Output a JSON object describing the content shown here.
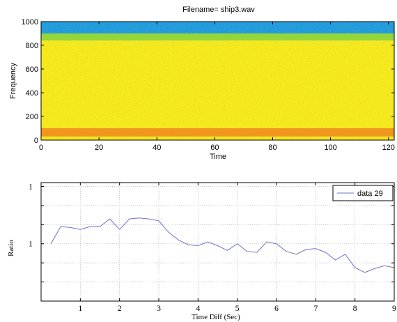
{
  "chart_data": [
    {
      "type": "heatmap",
      "title": "Filename= ship3.wav",
      "xlabel": "Time",
      "ylabel": "Frequency",
      "xlim": [
        0,
        122
      ],
      "ylim": [
        0,
        1000
      ],
      "x_ticks": [
        0,
        20,
        40,
        60,
        80,
        100,
        120
      ],
      "y_ticks": [
        0,
        200,
        400,
        600,
        800,
        1000
      ],
      "bands": [
        {
          "from": 0,
          "to": 30,
          "level": "yellow"
        },
        {
          "from": 30,
          "to": 100,
          "level": "orange-red"
        },
        {
          "from": 100,
          "to": 840,
          "level": "yellow"
        },
        {
          "from": 840,
          "to": 900,
          "level": "green"
        },
        {
          "from": 900,
          "to": 1000,
          "level": "cyan-blue"
        }
      ],
      "grid": false
    },
    {
      "type": "line",
      "xlabel": "Time Diff (Sec)",
      "ylabel": "Ratio",
      "xlim": [
        0,
        9
      ],
      "ylim": [
        0.7,
        1.32
      ],
      "x_ticks": [
        1,
        2,
        3,
        4,
        5,
        6,
        7,
        8,
        9
      ],
      "y_tick_labels": [
        {
          "value": 1.0,
          "label": "1"
        },
        {
          "value": 1.3,
          "label": "1"
        }
      ],
      "grid": true,
      "legend": "top-right",
      "series": [
        {
          "name": "data 29",
          "color": "#6f6fc7",
          "x": [
            0.25,
            0.5,
            0.75,
            1.0,
            1.25,
            1.5,
            1.75,
            2.0,
            2.25,
            2.5,
            2.75,
            3.0,
            3.25,
            3.5,
            3.75,
            4.0,
            4.25,
            4.5,
            4.75,
            5.0,
            5.25,
            5.5,
            5.75,
            6.0,
            6.25,
            6.5,
            6.75,
            7.0,
            7.25,
            7.5,
            7.75,
            8.0,
            8.25,
            8.5,
            8.75,
            9.0
          ],
          "values": [
            1.0,
            1.09,
            1.085,
            1.075,
            1.09,
            1.09,
            1.13,
            1.075,
            1.13,
            1.135,
            1.13,
            1.12,
            1.06,
            1.02,
            0.995,
            0.99,
            1.01,
            0.99,
            0.965,
            1.0,
            0.96,
            0.955,
            1.01,
            1.0,
            0.96,
            0.945,
            0.97,
            0.975,
            0.955,
            0.915,
            0.945,
            0.875,
            0.85,
            0.87,
            0.885,
            0.875
          ]
        }
      ]
    }
  ]
}
